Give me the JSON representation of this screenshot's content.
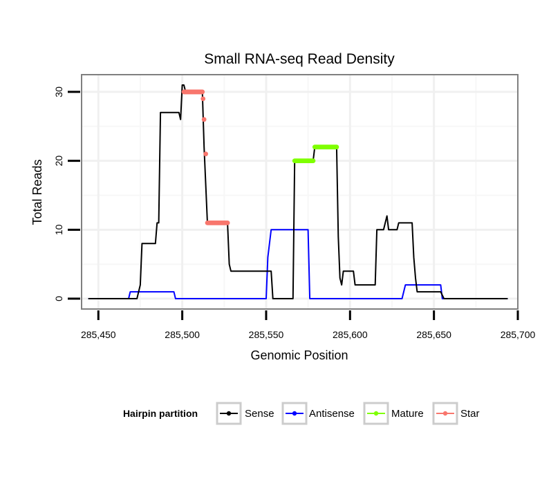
{
  "chart_data": {
    "type": "line",
    "title": "Small RNA-seq Read Density",
    "xlabel": "Genomic Position",
    "ylabel": "Total Reads",
    "xlim": [
      285440,
      285700
    ],
    "ylim": [
      -1.5,
      32.5
    ],
    "x_ticks": [
      285450,
      285500,
      285550,
      285600,
      285650,
      285700
    ],
    "x_tick_labels": [
      "285,450",
      "285,500",
      "285,550",
      "285,600",
      "285,650",
      "285,700"
    ],
    "y_ticks": [
      0,
      10,
      20,
      30
    ],
    "y_tick_labels": [
      "0",
      "10",
      "20",
      "30"
    ],
    "grid": true,
    "legend": {
      "title": "Hairpin partition",
      "position": "bottom",
      "entries": [
        "Sense",
        "Antisense",
        "Mature",
        "Star"
      ]
    },
    "series": [
      {
        "name": "Sense",
        "color": "#000000",
        "points": [
          [
            285444,
            0
          ],
          [
            285473,
            0
          ],
          [
            285475,
            2
          ],
          [
            285476,
            8
          ],
          [
            285484,
            8
          ],
          [
            285485,
            11
          ],
          [
            285486,
            11
          ],
          [
            285487,
            27
          ],
          [
            285498,
            27
          ],
          [
            285499,
            26
          ],
          [
            285500,
            31
          ],
          [
            285501,
            31
          ],
          [
            285502,
            30
          ],
          [
            285512,
            30
          ],
          [
            285513,
            22
          ],
          [
            285515,
            11
          ],
          [
            285527,
            11
          ],
          [
            285528,
            5
          ],
          [
            285529,
            4
          ],
          [
            285553,
            4
          ],
          [
            285554,
            0
          ],
          [
            285566,
            0
          ],
          [
            285567,
            20
          ],
          [
            285578,
            20
          ],
          [
            285579,
            22
          ],
          [
            285592,
            22
          ],
          [
            285593,
            9
          ],
          [
            285594,
            3
          ],
          [
            285595,
            2
          ],
          [
            285596,
            4
          ],
          [
            285602,
            4
          ],
          [
            285603,
            2
          ],
          [
            285615,
            2
          ],
          [
            285616,
            10
          ],
          [
            285620,
            10
          ],
          [
            285622,
            12
          ],
          [
            285623,
            10
          ],
          [
            285628,
            10
          ],
          [
            285629,
            11
          ],
          [
            285637,
            11
          ],
          [
            285638,
            6
          ],
          [
            285639,
            3
          ],
          [
            285640,
            1
          ],
          [
            285654,
            1
          ],
          [
            285656,
            0
          ],
          [
            285694,
            0
          ]
        ]
      },
      {
        "name": "Antisense",
        "color": "#0000ff",
        "points": [
          [
            285444,
            0
          ],
          [
            285468,
            0
          ],
          [
            285469,
            1
          ],
          [
            285495,
            1
          ],
          [
            285496,
            0
          ],
          [
            285550,
            0
          ],
          [
            285551,
            6
          ],
          [
            285552,
            8
          ],
          [
            285553,
            10
          ],
          [
            285575,
            10
          ],
          [
            285576,
            0
          ],
          [
            285631,
            0
          ],
          [
            285633,
            2
          ],
          [
            285654,
            2
          ],
          [
            285655,
            0
          ],
          [
            285694,
            0
          ]
        ]
      },
      {
        "name": "Mature",
        "color": "#7fff00",
        "points": [
          [
            285567,
            20
          ],
          [
            285578,
            20
          ],
          [
            285579,
            22
          ],
          [
            285592,
            22
          ]
        ]
      },
      {
        "name": "Star",
        "color": "#f8766d",
        "points": [
          [
            285501,
            30
          ],
          [
            285512,
            30
          ],
          [
            285512.4,
            29
          ],
          [
            285513,
            26
          ],
          [
            285514,
            21
          ],
          [
            285515,
            11
          ],
          [
            285527,
            11
          ]
        ]
      }
    ]
  }
}
